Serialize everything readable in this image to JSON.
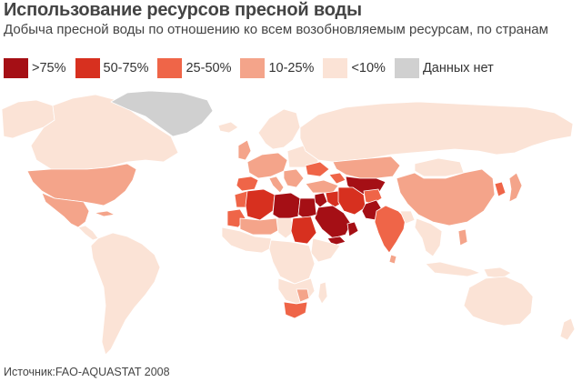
{
  "title": "Использование ресурсов пресной воды",
  "subtitle": "Добыча пресной воды по отношению ко всем возобновляемым ресурсам, по странам",
  "legend": [
    {
      "label": ">75%",
      "color": "#a50f15"
    },
    {
      "label": "50-75%",
      "color": "#d7301f"
    },
    {
      "label": "25-50%",
      "color": "#ef6548"
    },
    {
      "label": "10-25%",
      "color": "#f4a48a"
    },
    {
      "label": "<10%",
      "color": "#fbe3d6"
    },
    {
      "label": "Данных нет",
      "color": "#d0d0d0"
    }
  ],
  "source": "Источник:FAO-AQUASTAT 2008",
  "colors": {
    "ocean": "#ffffff",
    "border": "#ffffff"
  },
  "regions": [
    {
      "name": "canada",
      "legend_class": "<10%"
    },
    {
      "name": "alaska",
      "legend_class": "<10%"
    },
    {
      "name": "greenland",
      "legend_class": "Данных нет"
    },
    {
      "name": "usa",
      "legend_class": "10-25%"
    },
    {
      "name": "mexico",
      "legend_class": "10-25%"
    },
    {
      "name": "central-america",
      "legend_class": "<10%"
    },
    {
      "name": "cuba",
      "legend_class": "10-25%"
    },
    {
      "name": "south-america",
      "legend_class": "<10%"
    },
    {
      "name": "iceland",
      "legend_class": "<10%"
    },
    {
      "name": "scandinavia",
      "legend_class": "<10%"
    },
    {
      "name": "uk",
      "legend_class": "10-25%"
    },
    {
      "name": "western-europe",
      "legend_class": "10-25%"
    },
    {
      "name": "spain",
      "legend_class": "25-50%"
    },
    {
      "name": "eastern-europe",
      "legend_class": "<10%"
    },
    {
      "name": "ukraine",
      "legend_class": "25-50%"
    },
    {
      "name": "italy",
      "legend_class": "10-25%"
    },
    {
      "name": "balkans",
      "legend_class": "10-25%"
    },
    {
      "name": "turkey",
      "legend_class": "10-25%"
    },
    {
      "name": "russia",
      "legend_class": "<10%"
    },
    {
      "name": "kazakhstan",
      "legend_class": "10-25%"
    },
    {
      "name": "central-asia",
      "legend_class": ">75%"
    },
    {
      "name": "caucasus",
      "legend_class": "25-50%"
    },
    {
      "name": "mongolia",
      "legend_class": "<10%"
    },
    {
      "name": "china",
      "legend_class": "10-25%"
    },
    {
      "name": "korea",
      "legend_class": "25-50%"
    },
    {
      "name": "japan",
      "legend_class": "10-25%"
    },
    {
      "name": "morocco",
      "legend_class": "25-50%"
    },
    {
      "name": "algeria",
      "legend_class": "50-75%"
    },
    {
      "name": "libya",
      "legend_class": ">75%"
    },
    {
      "name": "egypt",
      "legend_class": ">75%"
    },
    {
      "name": "mauritania",
      "legend_class": "25-50%"
    },
    {
      "name": "mali-niger",
      "legend_class": "10-25%"
    },
    {
      "name": "chad",
      "legend_class": "<10%"
    },
    {
      "name": "sudan",
      "legend_class": "50-75%"
    },
    {
      "name": "west-africa",
      "legend_class": "<10%"
    },
    {
      "name": "horn-of-africa",
      "legend_class": "<10%"
    },
    {
      "name": "central-africa",
      "legend_class": "<10%"
    },
    {
      "name": "southern-africa",
      "legend_class": "<10%"
    },
    {
      "name": "south-africa",
      "legend_class": "25-50%"
    },
    {
      "name": "zimbabwe",
      "legend_class": "10-25%"
    },
    {
      "name": "madagascar",
      "legend_class": "<10%"
    },
    {
      "name": "saudi-arabia",
      "legend_class": ">75%"
    },
    {
      "name": "yemen",
      "legend_class": ">75%"
    },
    {
      "name": "oman",
      "legend_class": ">75%"
    },
    {
      "name": "levant",
      "legend_class": ">75%"
    },
    {
      "name": "iraq",
      "legend_class": "50-75%"
    },
    {
      "name": "iran",
      "legend_class": "50-75%"
    },
    {
      "name": "afghanistan",
      "legend_class": "25-50%"
    },
    {
      "name": "pakistan",
      "legend_class": ">75%"
    },
    {
      "name": "india",
      "legend_class": "25-50%"
    },
    {
      "name": "south-asia-east",
      "legend_class": "<10%"
    },
    {
      "name": "sri-lanka",
      "legend_class": "10-25%"
    },
    {
      "name": "southeast-asia",
      "legend_class": "<10%"
    },
    {
      "name": "indonesia",
      "legend_class": "<10%"
    },
    {
      "name": "philippines",
      "legend_class": "10-25%"
    },
    {
      "name": "new-guinea",
      "legend_class": "<10%"
    },
    {
      "name": "australia",
      "legend_class": "<10%"
    },
    {
      "name": "new-zealand",
      "legend_class": "<10%"
    }
  ]
}
